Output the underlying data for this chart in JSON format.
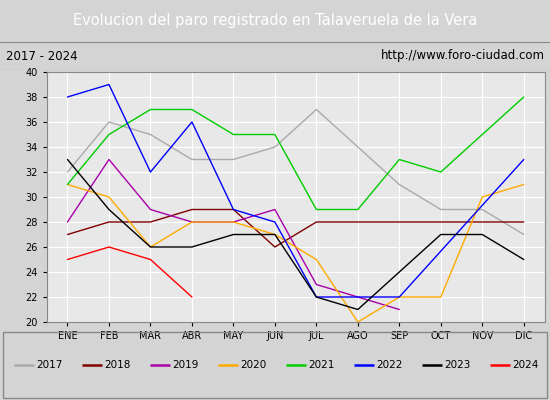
{
  "title": "Evolucion del paro registrado en Talaveruela de la Vera",
  "subtitle_left": "2017 - 2024",
  "subtitle_right": "http://www.foro-ciudad.com",
  "months": [
    "ENE",
    "FEB",
    "MAR",
    "ABR",
    "MAY",
    "JUN",
    "JUL",
    "AGO",
    "SEP",
    "OCT",
    "NOV",
    "DIC"
  ],
  "ylim": [
    20,
    40
  ],
  "yticks": [
    20,
    22,
    24,
    26,
    28,
    30,
    32,
    34,
    36,
    38,
    40
  ],
  "series": {
    "2017": {
      "color": "#aaaaaa",
      "data": [
        32,
        36,
        35,
        33,
        33,
        34,
        37,
        34,
        31,
        29,
        29,
        27
      ]
    },
    "2018": {
      "color": "#800000",
      "data": [
        27,
        28,
        28,
        29,
        29,
        26,
        28,
        28,
        28,
        28,
        28,
        28
      ]
    },
    "2019": {
      "color": "#aa00aa",
      "data": [
        28,
        33,
        29,
        28,
        28,
        29,
        23,
        22,
        21,
        null,
        null,
        null
      ]
    },
    "2020": {
      "color": "#ffaa00",
      "data": [
        31,
        30,
        26,
        28,
        28,
        27,
        25,
        20,
        22,
        22,
        30,
        31
      ]
    },
    "2021": {
      "color": "#00cc00",
      "data": [
        31,
        35,
        37,
        37,
        35,
        35,
        29,
        29,
        33,
        32,
        null,
        38
      ]
    },
    "2022": {
      "color": "#0000ff",
      "data": [
        38,
        39,
        32,
        36,
        29,
        28,
        22,
        22,
        22,
        null,
        null,
        33
      ]
    },
    "2023": {
      "color": "#000000",
      "data": [
        33,
        29,
        26,
        26,
        27,
        27,
        22,
        21,
        null,
        27,
        27,
        25
      ]
    },
    "2024": {
      "color": "#ff0000",
      "data": [
        25,
        26,
        25,
        22,
        null,
        null,
        null,
        null,
        null,
        null,
        null,
        null
      ]
    }
  },
  "background_color": "#d4d4d4",
  "plot_background": "#e8e8e8",
  "title_bg": "#4a86c8",
  "title_color": "white",
  "header_bg": "#c8c8c8",
  "grid_color": "#ffffff",
  "legend_border": "#888888"
}
